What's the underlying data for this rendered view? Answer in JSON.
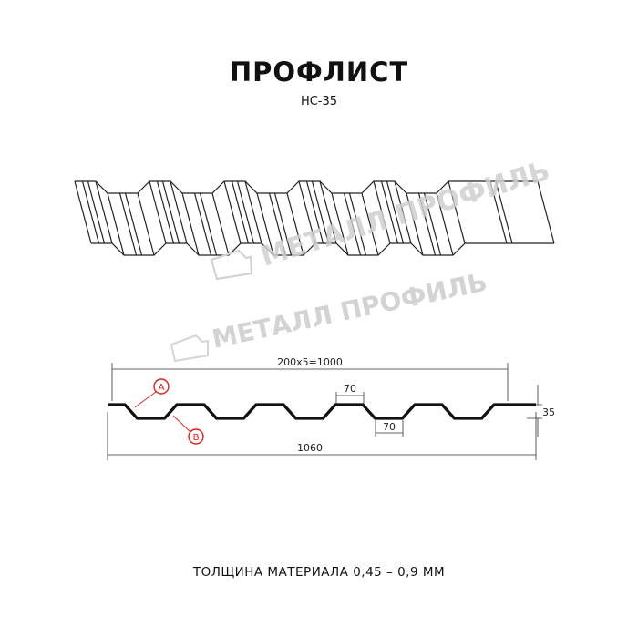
{
  "title": "ПРОФЛИСТ",
  "subtitle": "НС-35",
  "watermark": "МЕТАЛЛ ПРОФИЛЬ",
  "dimensions": {
    "pitch_total": "200x5=1000",
    "crest_width": "70",
    "trough_width": "70",
    "height": "35",
    "total_width": "1060"
  },
  "markers": {
    "a": "A",
    "b": "B"
  },
  "footer": "ТОЛЩИНА МАТЕРИАЛА 0,45 – 0,9 ММ",
  "colors": {
    "line": "#111111",
    "marker": "#e0201c",
    "watermark": "#c8c8c8"
  }
}
